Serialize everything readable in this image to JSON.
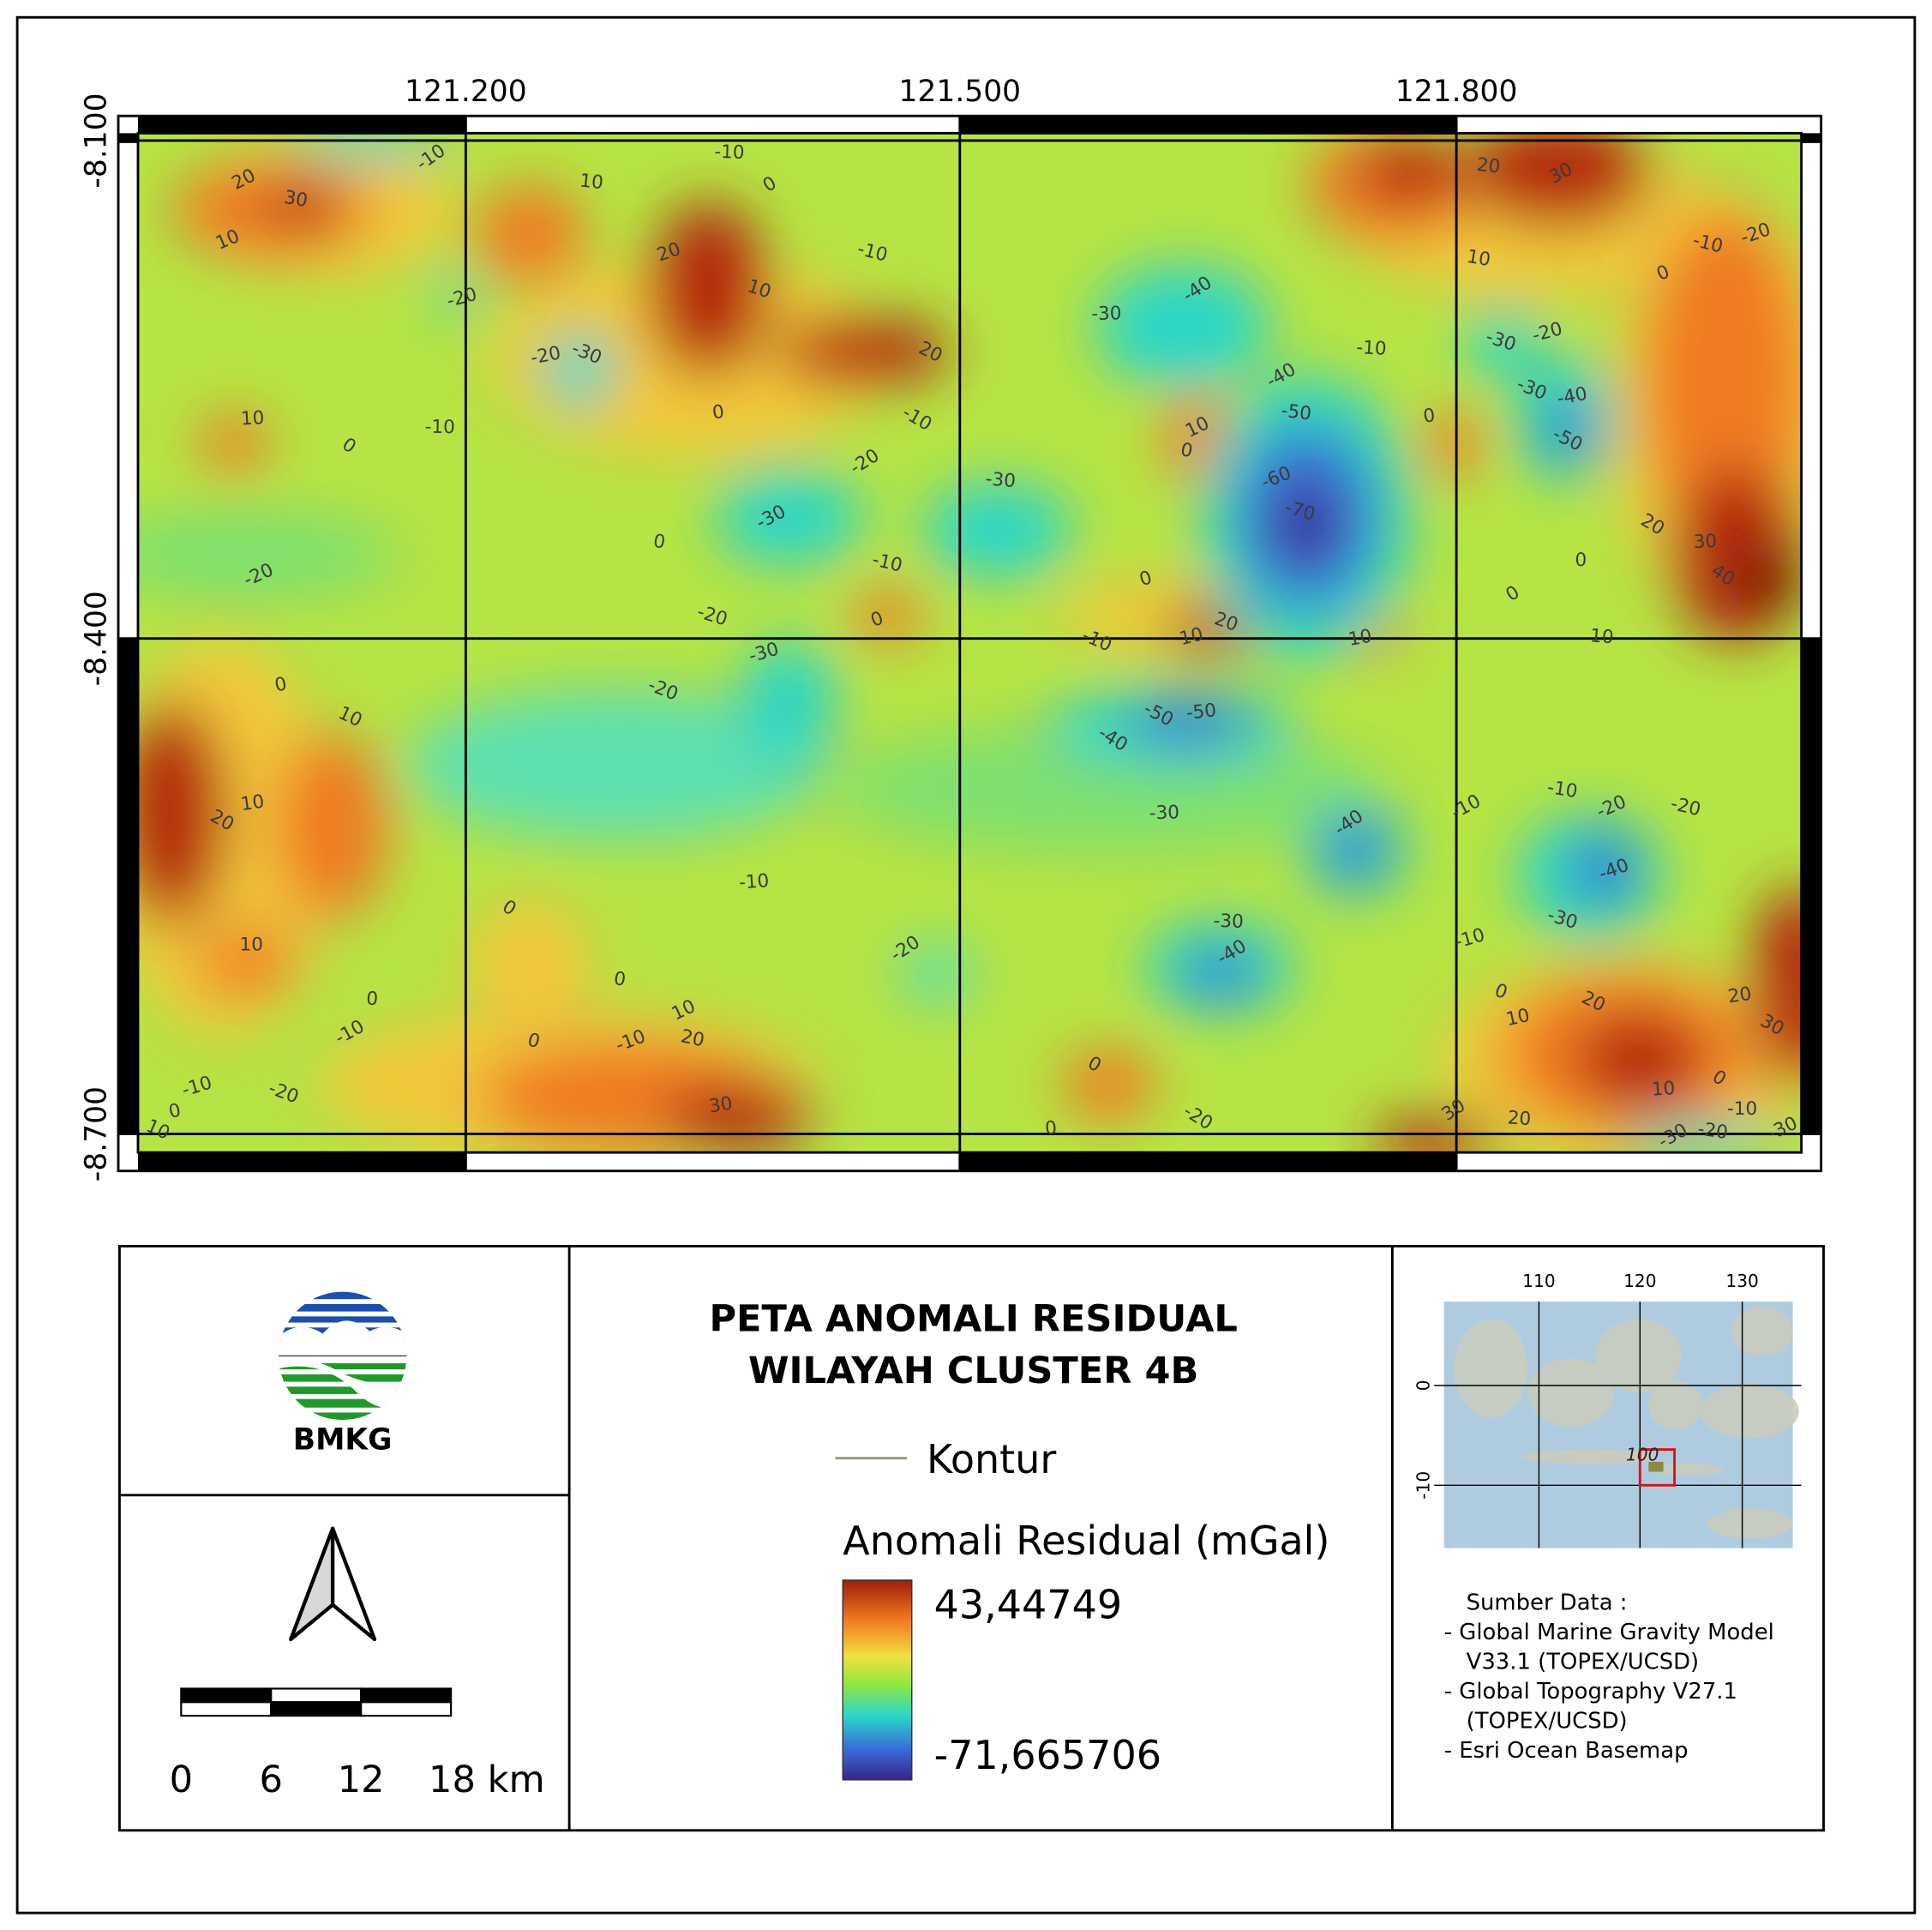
{
  "map": {
    "lon_labels": [
      "121.200",
      "121.500",
      "121.800"
    ],
    "lat_labels": [
      "-8.100",
      "-8.400",
      "-8.700"
    ],
    "contour_labels": [
      "-10",
      "-10",
      "0",
      "10",
      "20",
      "30",
      "10",
      "-10",
      "20",
      "10",
      "-20",
      "-30",
      "-20",
      "20",
      "0",
      "-10",
      "10",
      "0",
      "-10",
      "-20",
      "-30",
      "-30",
      "0",
      "-20",
      "-10",
      "0",
      "-20",
      "-30",
      "-20",
      "0",
      "10",
      "10",
      "20",
      "-10",
      "0",
      "10",
      "-20",
      "0",
      "-10",
      "0",
      "10",
      "20",
      "-10",
      "0",
      "-10",
      "-20",
      "0",
      "10",
      "30",
      "0",
      "0",
      "-20",
      "-30",
      "-40",
      "-10",
      "-40",
      "-50",
      "10",
      "0",
      "-60",
      "-70",
      "0",
      "20",
      "10",
      "-10",
      "10",
      "-50",
      "-50",
      "-40",
      "-30",
      "-40",
      "-30",
      "-40",
      "20",
      "30",
      "10",
      "0",
      "-10",
      "-20",
      "-30",
      "-20",
      "-30",
      "-40",
      "-50",
      "0",
      "20",
      "30",
      "40",
      "0",
      "0",
      "10",
      "-10",
      "-10",
      "-20",
      "-20",
      "-40",
      "-30",
      "-10",
      "0",
      "10",
      "20",
      "20",
      "30",
      "10",
      "0",
      "-10",
      "30",
      "20",
      "-30",
      "-20",
      "-30"
    ]
  },
  "title_lines": [
    "PETA ANOMALI RESIDUAL",
    "WILAYAH CLUSTER 4B"
  ],
  "legend": {
    "contour": "Kontur",
    "layer_title": "Anomali Residual (mGal)",
    "max": "43,44749",
    "min": "-71,665706"
  },
  "logo": {
    "text": "BMKG"
  },
  "scale_bar": {
    "labels": [
      "0",
      "6",
      "12",
      "18 km"
    ]
  },
  "inset": {
    "lon_labels": [
      "110",
      "120",
      "130"
    ],
    "lat_labels": [
      "0",
      "-10"
    ],
    "annotation": "100"
  },
  "sources": {
    "heading": "Sumber Data :",
    "lines": [
      "-  Global Marine Gravity Model",
      "V33.1 (TOPEX/UCSD)",
      "-  Global Topography V27.1",
      "(TOPEX/UCSD)",
      "-  Esri Ocean Basemap"
    ]
  }
}
